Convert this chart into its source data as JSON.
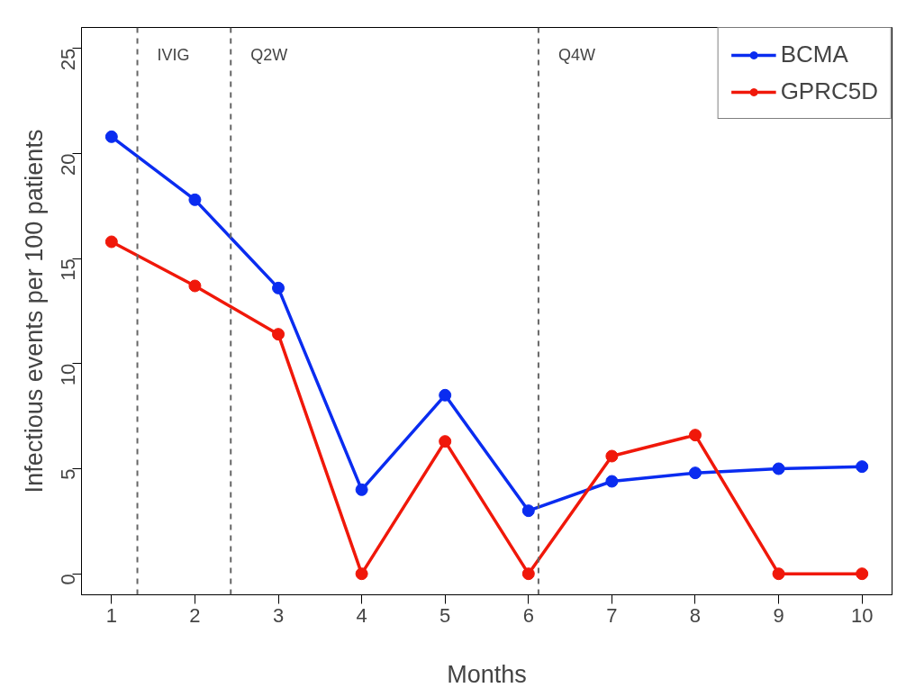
{
  "chart_data": {
    "type": "line",
    "xlabel": "Months",
    "ylabel": "Infectious events per 100 patients",
    "x": [
      1,
      2,
      3,
      4,
      5,
      6,
      7,
      8,
      9,
      10
    ],
    "series": [
      {
        "name": "BCMA",
        "color": "#0a2cf0",
        "values": [
          20.8,
          17.8,
          13.6,
          4.0,
          8.5,
          3.0,
          4.4,
          4.8,
          5.0,
          5.1
        ]
      },
      {
        "name": "GPRC5D",
        "color": "#f0180a",
        "values": [
          15.8,
          13.7,
          11.4,
          0,
          6.3,
          0,
          5.6,
          6.6,
          0,
          0
        ]
      }
    ],
    "xlim": [
      0.64,
      10.36
    ],
    "ylim": [
      -1,
      26
    ],
    "xticks": [
      1,
      2,
      3,
      4,
      5,
      6,
      7,
      8,
      9,
      10
    ],
    "yticks": [
      0,
      5,
      10,
      15,
      20,
      25
    ],
    "ref_lines": [
      {
        "axis": "x",
        "value": 1.31,
        "label": "IVIG",
        "color": "#666666",
        "line_style": "dashed"
      },
      {
        "axis": "x",
        "value": 2.43,
        "label": "Q2W",
        "color": "#666666",
        "line_style": "dashed"
      },
      {
        "axis": "x",
        "value": 6.12,
        "label": "Q4W",
        "color": "#666666",
        "line_style": "dashed"
      }
    ],
    "grid": false,
    "legend": "top right",
    "marker": "circle",
    "line_style": "solid"
  }
}
